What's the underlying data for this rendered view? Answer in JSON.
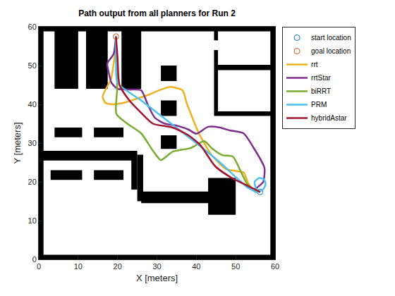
{
  "chart_data": {
    "type": "line",
    "title": "Path output from all planners for Run 2",
    "x_label": "X [meters]",
    "y_label": "Y [meters]",
    "xlim": [
      0,
      60
    ],
    "ylim": [
      0,
      60
    ],
    "xticks": [
      0,
      10,
      20,
      30,
      40,
      50,
      60
    ],
    "yticks": [
      0,
      10,
      20,
      30,
      40,
      50,
      60
    ],
    "grid": false,
    "legend": "northeastoutside",
    "obstacles": {
      "color": "#000000",
      "rects": [
        [
          0,
          0,
          1.2,
          60
        ],
        [
          58.8,
          0,
          60,
          60
        ],
        [
          0,
          58.8,
          60,
          60
        ],
        [
          0,
          0,
          60,
          1.2
        ],
        [
          4,
          44,
          10,
          60
        ],
        [
          12,
          44,
          17.5,
          60
        ],
        [
          21,
          44,
          26,
          60
        ],
        [
          31,
          46,
          35,
          50
        ],
        [
          31,
          37,
          35,
          41
        ],
        [
          31,
          28.5,
          35,
          32
        ],
        [
          44.5,
          56.5,
          45.5,
          60
        ],
        [
          44.5,
          37,
          45.5,
          54
        ],
        [
          45.5,
          48.8,
          59,
          50.2
        ],
        [
          45.5,
          37,
          59,
          38.2
        ],
        [
          4,
          31.5,
          11,
          34
        ],
        [
          14,
          31.5,
          21.5,
          34
        ],
        [
          0,
          25.5,
          24,
          28
        ],
        [
          3,
          20.5,
          11,
          23
        ],
        [
          14,
          20.5,
          21.5,
          23
        ],
        [
          23.5,
          18,
          25,
          28
        ],
        [
          25,
          15,
          26.5,
          27
        ],
        [
          26,
          14.5,
          44,
          17.5
        ],
        [
          43,
          11.5,
          50,
          21
        ]
      ]
    },
    "series": [
      {
        "name": "start location",
        "type": "scatter",
        "marker": "circle",
        "color": "#0072BD",
        "x": [
          56.2
        ],
        "y": [
          17.4
        ]
      },
      {
        "name": "goal location",
        "type": "scatter",
        "marker": "circle",
        "color": "#D95319",
        "x": [
          19.6
        ],
        "y": [
          57.5
        ]
      },
      {
        "name": "rrt",
        "type": "line",
        "color": "#EDB120",
        "x": [
          19.6,
          19.2,
          18.3,
          16.2,
          17.0,
          19.0,
          22.0,
          25.0,
          28.0,
          31.0,
          33.5,
          36.5,
          37.5,
          38.5,
          40.7,
          43.9,
          47.5,
          50.0,
          52.0,
          53.2,
          54.5,
          56.2
        ],
        "y": [
          57.5,
          52.0,
          46.5,
          42.0,
          40.3,
          40.0,
          40.5,
          41.5,
          42.5,
          43.8,
          44.5,
          43.6,
          40.5,
          37.8,
          32.4,
          26.9,
          23.3,
          22.8,
          22.4,
          19.6,
          18.0,
          17.4
        ]
      },
      {
        "name": "rrtStar",
        "type": "line",
        "color": "#7E2F8E",
        "x": [
          19.6,
          19.0,
          17.4,
          17.8,
          18.5,
          20.0,
          23.0,
          26.0,
          27.8,
          29.5,
          32.0,
          35.0,
          38.0,
          40.0,
          43.0,
          46.0,
          48.4,
          52.0,
          54.6,
          57.3,
          57.0,
          55.8,
          55.0,
          56.2
        ],
        "y": [
          57.5,
          53.0,
          50.5,
          48.0,
          45.5,
          44.0,
          43.8,
          43.6,
          39.6,
          36.5,
          35.0,
          34.5,
          33.5,
          32.4,
          34.2,
          34.0,
          33.3,
          32.5,
          28.7,
          23.6,
          20.0,
          18.8,
          18.2,
          17.4
        ]
      },
      {
        "name": "biRRT",
        "type": "line",
        "color": "#77AC30",
        "x": [
          19.6,
          19.8,
          19.9,
          19.7,
          22.5,
          26.0,
          29.0,
          31.0,
          34.0,
          38.5,
          42.0,
          43.9,
          46.6,
          49.3,
          51.0,
          52.8,
          53.7,
          55.0,
          56.2
        ],
        "y": [
          57.5,
          50.0,
          44.0,
          37.5,
          35.0,
          32.5,
          28.0,
          25.6,
          27.8,
          28.7,
          30.5,
          28.7,
          26.9,
          26.5,
          23.3,
          19.6,
          18.7,
          17.8,
          17.4
        ]
      },
      {
        "name": "PRM",
        "type": "line",
        "color": "#4DBEEE",
        "x": [
          19.6,
          19.6,
          20.0,
          26.0,
          33.0,
          40.0,
          46.0,
          52.8,
          54.2,
          55.2,
          56.8,
          57.6,
          57.2,
          56.0,
          54.8,
          55.2,
          56.2
        ],
        "y": [
          57.5,
          51.0,
          45.5,
          41.0,
          35.5,
          30.0,
          25.0,
          18.7,
          17.9,
          17.3,
          17.9,
          19.3,
          20.6,
          21.0,
          20.0,
          18.2,
          17.4
        ]
      },
      {
        "name": "hybridAstar",
        "type": "line",
        "color": "#A2142F",
        "x": [
          19.6,
          20.0,
          20.5,
          23.0,
          26.0,
          29.0,
          34.0,
          38.0,
          41.0,
          44.8,
          49.0,
          52.0,
          55.0,
          56.2
        ],
        "y": [
          57.5,
          52.0,
          45.0,
          41.0,
          37.8,
          35.0,
          34.0,
          32.0,
          29.5,
          24.0,
          21.0,
          19.5,
          18.0,
          17.4
        ]
      }
    ]
  }
}
